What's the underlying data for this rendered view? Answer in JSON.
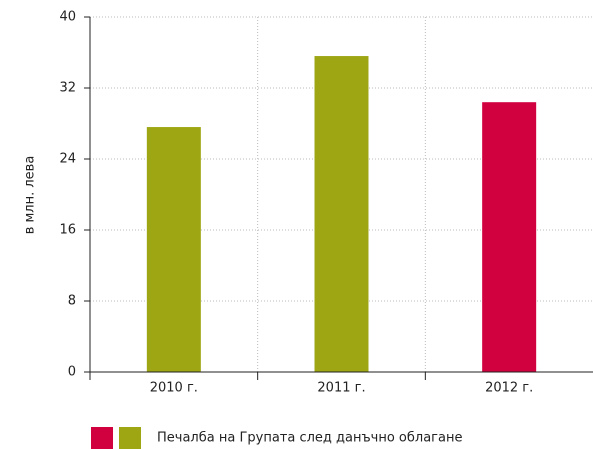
{
  "chart_data": {
    "type": "bar",
    "y_label": "в млн. лева",
    "categories": [
      "2010 г.",
      "2011 г.",
      "2012 г."
    ],
    "values": [
      27.6,
      35.6,
      30.4
    ],
    "colors": [
      "#9ea614",
      "#9ea614",
      "#d1003f"
    ],
    "ylim": [
      0,
      40
    ],
    "yticks": [
      0,
      8,
      16,
      24,
      32,
      40
    ],
    "grid": true,
    "legend": {
      "label": "Печалба на Групата след данъчно облагане",
      "colors": [
        "#d1003f",
        "#9ea614"
      ],
      "position": "bottom"
    }
  }
}
